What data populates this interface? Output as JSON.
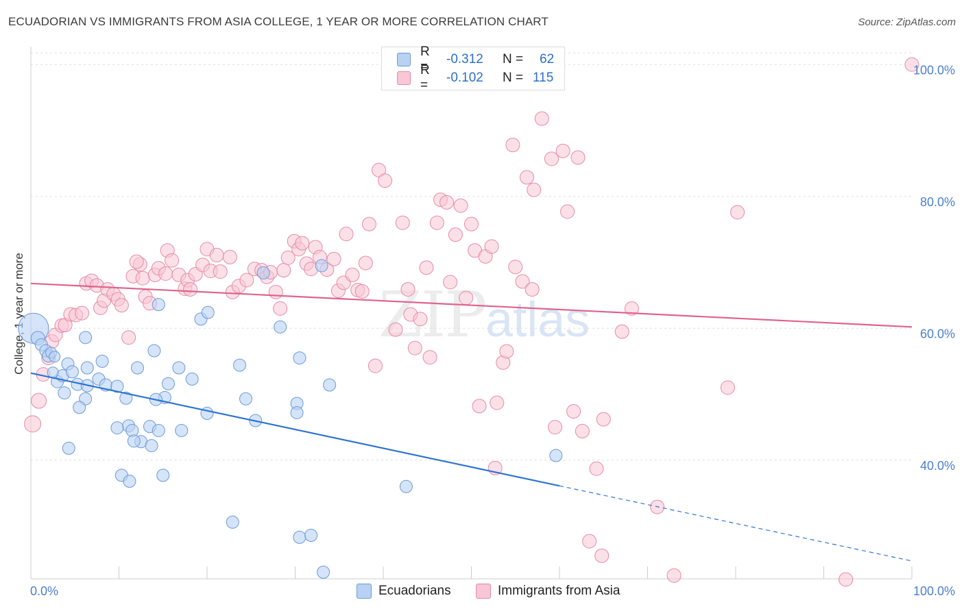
{
  "title": "ECUADORIAN VS IMMIGRANTS FROM ASIA COLLEGE, 1 YEAR OR MORE CORRELATION CHART",
  "source": "Source: ZipAtlas.com",
  "watermark": {
    "zip": "ZIP",
    "atlas": "atlas"
  },
  "legend": {
    "r_label": "R =",
    "n_label": "N =",
    "rows": [
      {
        "name": "Ecuadorians",
        "r": "-0.312",
        "n": "62"
      },
      {
        "name": "Immigrants from Asia",
        "r": "-0.102",
        "n": "115"
      }
    ]
  },
  "colors": {
    "blue_fill": "#b9d2f3",
    "blue_stroke": "#6a9ad8",
    "blue_line": "#2e74d2",
    "pink_fill": "#f8c6d5",
    "pink_stroke": "#e68aa7",
    "pink_line": "#e0638c"
  },
  "chart_data": {
    "type": "scatter",
    "title": "ECUADORIAN VS IMMIGRANTS FROM ASIA COLLEGE, 1 YEAR OR MORE CORRELATION CHART",
    "xlabel": "",
    "ylabel": "College, 1 year or more",
    "xlim": [
      0,
      100
    ],
    "ylim": [
      22,
      102
    ],
    "x_tick_labels": [
      "0.0%",
      "100.0%"
    ],
    "y_ticks": [
      {
        "value": 40,
        "label": "40.0%"
      },
      {
        "value": 60,
        "label": "60.0%"
      },
      {
        "value": 80,
        "label": "80.0%"
      },
      {
        "value": 100,
        "label": "100.0%"
      }
    ],
    "series": [
      {
        "name": "Ecuadorians",
        "trend": {
          "x0": 0,
          "y0": 53.2,
          "x1": 60,
          "y1": 36.1,
          "dash_to_x": 100,
          "dash_to_y": 24.7
        },
        "points": [
          [
            0.3,
            60,
            22
          ],
          [
            0.8,
            58.5,
            10
          ],
          [
            1.2,
            57.5,
            9
          ],
          [
            1.7,
            56.6,
            9
          ],
          [
            2.0,
            55.8,
            9
          ],
          [
            2.3,
            56.3,
            8
          ],
          [
            2.7,
            55.7,
            8
          ],
          [
            3.0,
            51.9,
            9
          ],
          [
            3.6,
            52.8,
            9
          ],
          [
            2.5,
            53.3,
            8
          ],
          [
            4.2,
            54.6,
            9
          ],
          [
            4.7,
            53.4,
            9
          ],
          [
            6.4,
            54.0,
            9
          ],
          [
            8.1,
            55.0,
            9
          ],
          [
            5.3,
            51.5,
            9
          ],
          [
            6.4,
            51.3,
            9
          ],
          [
            7.7,
            52.3,
            9
          ],
          [
            8.5,
            51.4,
            9
          ],
          [
            9.8,
            51.2,
            9
          ],
          [
            6.2,
            49.3,
            9
          ],
          [
            10.8,
            49.4,
            9
          ],
          [
            3.8,
            50.2,
            9
          ],
          [
            5.5,
            48.0,
            9
          ],
          [
            11.1,
            45.2,
            9
          ],
          [
            11.5,
            44.5,
            9
          ],
          [
            9.8,
            44.9,
            9
          ],
          [
            13.5,
            45.1,
            9
          ],
          [
            12.5,
            42.8,
            9
          ],
          [
            14.5,
            44.5,
            9
          ],
          [
            11.7,
            42.9,
            9
          ],
          [
            13.7,
            42.2,
            9
          ],
          [
            12.1,
            54.0,
            9
          ],
          [
            15.2,
            49.5,
            9
          ],
          [
            16.8,
            54.0,
            9
          ],
          [
            18.3,
            52.3,
            9
          ],
          [
            14.0,
            56.6,
            9
          ],
          [
            15.6,
            51.6,
            9
          ],
          [
            4.3,
            41.8,
            9
          ],
          [
            6.2,
            58.6,
            9
          ],
          [
            14.2,
            49.2,
            9
          ],
          [
            20.0,
            47.1,
            9
          ],
          [
            19.3,
            61.4,
            9
          ],
          [
            20.1,
            62.4,
            9
          ],
          [
            23.7,
            54.4,
            9
          ],
          [
            24.4,
            49.3,
            9
          ],
          [
            25.5,
            46.0,
            9
          ],
          [
            26.4,
            68.4,
            9
          ],
          [
            28.3,
            60.2,
            9
          ],
          [
            30.2,
            48.6,
            9
          ],
          [
            30.2,
            47.2,
            9
          ],
          [
            30.5,
            55.5,
            9
          ],
          [
            33.9,
            51.4,
            9
          ],
          [
            33.0,
            69.5,
            9
          ],
          [
            17.1,
            44.5,
            9
          ],
          [
            15.0,
            37.7,
            9
          ],
          [
            10.3,
            37.7,
            9
          ],
          [
            11.2,
            36.8,
            9
          ],
          [
            14.5,
            63.6,
            9
          ],
          [
            22.9,
            30.6,
            9
          ],
          [
            30.5,
            28.3,
            9
          ],
          [
            31.8,
            28.6,
            9
          ],
          [
            33.2,
            23.0,
            9
          ],
          [
            42.6,
            36.0,
            9
          ],
          [
            59.6,
            40.7,
            9
          ]
        ]
      },
      {
        "name": "Immigrants from Asia",
        "trend": {
          "x0": 0,
          "y0": 66.8,
          "x1": 100,
          "y1": 60.2
        },
        "points": [
          [
            0.2,
            45.5,
            12
          ],
          [
            0.9,
            49.0,
            11
          ],
          [
            1.4,
            53.0,
            10
          ],
          [
            2.0,
            55.5,
            10
          ],
          [
            2.4,
            58.0,
            10
          ],
          [
            2.8,
            59.0,
            10
          ],
          [
            3.5,
            60.4,
            10
          ],
          [
            3.9,
            60.5,
            10
          ],
          [
            4.5,
            62.1,
            10
          ],
          [
            5.1,
            62.0,
            10
          ],
          [
            5.8,
            62.3,
            10
          ],
          [
            6.3,
            66.8,
            10
          ],
          [
            6.9,
            67.2,
            10
          ],
          [
            7.5,
            66.5,
            10
          ],
          [
            7.9,
            63.1,
            10
          ],
          [
            8.3,
            64.2,
            10
          ],
          [
            8.7,
            65.9,
            10
          ],
          [
            9.4,
            65.2,
            10
          ],
          [
            9.9,
            64.4,
            10
          ],
          [
            10.3,
            63.5,
            10
          ],
          [
            11.1,
            58.6,
            10
          ],
          [
            11.6,
            67.9,
            10
          ],
          [
            12.4,
            69.7,
            10
          ],
          [
            12.0,
            70.1,
            10
          ],
          [
            12.7,
            67.6,
            10
          ],
          [
            13.0,
            64.8,
            10
          ],
          [
            13.5,
            63.8,
            10
          ],
          [
            14.1,
            68.1,
            10
          ],
          [
            14.5,
            69.1,
            10
          ],
          [
            15.3,
            68.3,
            10
          ],
          [
            15.5,
            71.8,
            10
          ],
          [
            16.0,
            70.3,
            10
          ],
          [
            16.8,
            68.1,
            10
          ],
          [
            17.5,
            66.0,
            10
          ],
          [
            17.8,
            67.3,
            10
          ],
          [
            18.1,
            65.9,
            10
          ],
          [
            18.7,
            68.2,
            10
          ],
          [
            19.5,
            69.6,
            10
          ],
          [
            20.0,
            72.0,
            10
          ],
          [
            20.4,
            68.7,
            10
          ],
          [
            21.1,
            71.1,
            10
          ],
          [
            21.5,
            68.6,
            10
          ],
          [
            22.6,
            70.8,
            10
          ],
          [
            22.9,
            65.5,
            10
          ],
          [
            23.6,
            66.4,
            10
          ],
          [
            24.5,
            67.3,
            10
          ],
          [
            25.4,
            69.0,
            10
          ],
          [
            26.2,
            68.8,
            10
          ],
          [
            26.8,
            67.8,
            10
          ],
          [
            27.2,
            68.5,
            10
          ],
          [
            27.8,
            65.5,
            10
          ],
          [
            28.3,
            63.0,
            10
          ],
          [
            28.7,
            68.8,
            10
          ],
          [
            29.2,
            70.7,
            10
          ],
          [
            29.9,
            73.2,
            10
          ],
          [
            30.4,
            72.0,
            10
          ],
          [
            30.8,
            72.9,
            10
          ],
          [
            31.3,
            69.8,
            10
          ],
          [
            31.8,
            69.0,
            10
          ],
          [
            32.3,
            72.3,
            10
          ],
          [
            32.8,
            70.8,
            10
          ],
          [
            33.6,
            68.9,
            10
          ],
          [
            34.4,
            70.5,
            10
          ],
          [
            34.9,
            65.7,
            10
          ],
          [
            35.5,
            66.9,
            10
          ],
          [
            35.8,
            74.3,
            10
          ],
          [
            36.5,
            68.1,
            10
          ],
          [
            37.1,
            65.8,
            10
          ],
          [
            37.6,
            65.6,
            10
          ],
          [
            38.0,
            69.9,
            10
          ],
          [
            38.4,
            75.8,
            10
          ],
          [
            39.1,
            54.3,
            10
          ],
          [
            39.5,
            84.0,
            10
          ],
          [
            40.2,
            82.4,
            10
          ],
          [
            41.4,
            59.8,
            10
          ],
          [
            42.2,
            76.0,
            10
          ],
          [
            42.8,
            65.9,
            10
          ],
          [
            43.1,
            62.1,
            10
          ],
          [
            43.6,
            57.0,
            10
          ],
          [
            44.2,
            61.4,
            10
          ],
          [
            44.9,
            69.2,
            10
          ],
          [
            45.3,
            55.6,
            10
          ],
          [
            46.1,
            76.0,
            10
          ],
          [
            46.5,
            79.5,
            10
          ],
          [
            47.2,
            79.1,
            10
          ],
          [
            47.6,
            67.0,
            10
          ],
          [
            48.2,
            74.2,
            10
          ],
          [
            48.8,
            78.6,
            10
          ],
          [
            49.4,
            64.6,
            10
          ],
          [
            50.0,
            75.8,
            10
          ],
          [
            50.4,
            71.8,
            10
          ],
          [
            50.9,
            48.2,
            10
          ],
          [
            51.6,
            70.9,
            10
          ],
          [
            52.3,
            72.4,
            10
          ],
          [
            52.7,
            38.8,
            10
          ],
          [
            52.9,
            48.7,
            10
          ],
          [
            53.6,
            54.8,
            10
          ],
          [
            54.0,
            56.5,
            10
          ],
          [
            54.7,
            87.8,
            10
          ],
          [
            55.0,
            69.3,
            10
          ],
          [
            55.8,
            67.1,
            10
          ],
          [
            56.3,
            82.9,
            10
          ],
          [
            57.1,
            81.0,
            10
          ],
          [
            56.9,
            65.9,
            10
          ],
          [
            58.0,
            91.8,
            10
          ],
          [
            59.1,
            85.7,
            10
          ],
          [
            59.5,
            45.0,
            10
          ],
          [
            60.4,
            86.9,
            10
          ],
          [
            60.9,
            77.7,
            10
          ],
          [
            61.6,
            47.4,
            10
          ],
          [
            62.1,
            85.9,
            10
          ],
          [
            62.6,
            44.4,
            10
          ],
          [
            63.4,
            27.7,
            10
          ],
          [
            64.2,
            38.7,
            10
          ],
          [
            65.0,
            46.2,
            10
          ],
          [
            64.8,
            25.5,
            10
          ],
          [
            67.1,
            59.5,
            10
          ],
          [
            68.2,
            63.0,
            10
          ],
          [
            71.1,
            32.9,
            10
          ],
          [
            73.0,
            22.5,
            10
          ],
          [
            79.1,
            51.0,
            10
          ],
          [
            80.2,
            77.6,
            10
          ],
          [
            92.5,
            21.9,
            10
          ],
          [
            100,
            100,
            10
          ]
        ]
      }
    ]
  }
}
